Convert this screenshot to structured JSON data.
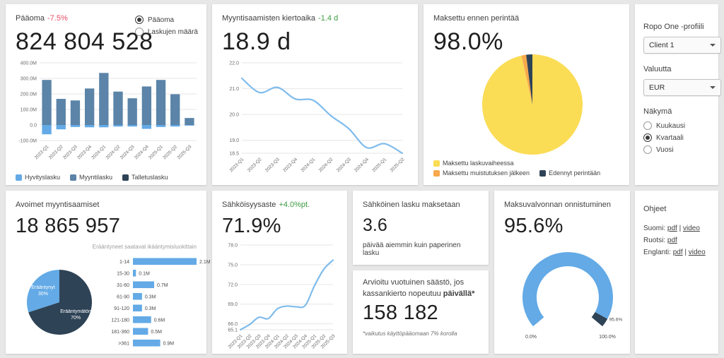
{
  "colors": {
    "accent_blue": "#63aae6",
    "line_blue": "#7fbcec",
    "steel_blue": "#5b84a8",
    "dark_navy": "#2e4356",
    "yellow": "#fbdc55",
    "orange": "#f7a94c",
    "red": "#ed4d66",
    "green": "#3c9a40"
  },
  "cards": {
    "paaoma": {
      "title": "Pääoma",
      "delta": "-7.5%",
      "value": "824 804 528",
      "radio_options": [
        {
          "label": "Pääoma",
          "selected": true
        },
        {
          "label": "Laskujen määrä",
          "selected": false
        }
      ]
    },
    "kiertoaika": {
      "title": "Myyntisaamisten kiertoaika",
      "delta": "-1.4 d",
      "value": "18.9 d"
    },
    "ennen_perintaa": {
      "title": "Maksettu ennen perintää",
      "value": "98.0%"
    },
    "avoimet": {
      "title": "Avoimet myyntisaamiset",
      "value": "18 865 957"
    },
    "sahkoisyysaste": {
      "title": "Sähköisyysaste",
      "delta": "+4.0%pt.",
      "value": "71.9%"
    },
    "sahkoinen_lasku": {
      "title": "Sähköinen lasku maksetaan",
      "value": "3.6",
      "subtitle": "päivää aiemmin kuin paperinen lasku"
    },
    "saasto": {
      "title_prefix": "Arvioitu vuotuinen säästö, jos kassankierto nopeutuu ",
      "title_bold": "päivällä*",
      "value": "158 182",
      "footnote": "*vaikutus käyttöpääomaan 7% korolla"
    },
    "maksuvalvonta": {
      "title": "Maksuvalvonnan onnistuminen",
      "value": "95.6%"
    }
  },
  "sidebar": {
    "profile_label": "Ropo One -profiili",
    "profile_value": "Client 1",
    "currency_label": "Valuutta",
    "currency_value": "EUR",
    "view_label": "Näkymä",
    "view_options": [
      {
        "label": "Kuukausi",
        "selected": false
      },
      {
        "label": "Kvartaali",
        "selected": true
      },
      {
        "label": "Vuosi",
        "selected": false
      }
    ]
  },
  "help": {
    "title": "Ohjeet",
    "rows": [
      {
        "lang": "Suomi:",
        "links": [
          "pdf",
          "video"
        ]
      },
      {
        "lang": "Ruotsi:",
        "links": [
          "pdf"
        ]
      },
      {
        "lang": "Englanti:",
        "links": [
          "pdf",
          "video"
        ]
      }
    ]
  },
  "chart_data": [
    {
      "id": "chart-paaoma",
      "type": "bar",
      "stacked": true,
      "title": "Pääoma",
      "categories": [
        "2023-Q1",
        "2023-Q2",
        "2023-Q3",
        "2023-Q4",
        "2024-Q1",
        "2024-Q2",
        "2024-Q3",
        "2024-Q4",
        "2025-Q1",
        "2025-Q2",
        "2025-Q3"
      ],
      "series": [
        {
          "name": "Hyvityslasku",
          "color": "#63aae6",
          "values": [
            -60,
            -28,
            -13,
            -15,
            -15,
            -10,
            -10,
            -25,
            -13,
            -10,
            -4
          ]
        },
        {
          "name": "Myyntilasku",
          "color": "#5b84a8",
          "values": [
            290,
            168,
            158,
            235,
            335,
            215,
            172,
            248,
            290,
            198,
            45
          ]
        },
        {
          "name": "Talletuslasku",
          "color": "#2e4356",
          "values": [
            0,
            0,
            0,
            0,
            0,
            0,
            0,
            0,
            0,
            0,
            0
          ]
        }
      ],
      "ylim": [
        -100,
        400
      ],
      "yticks": [
        {
          "v": 400,
          "label": "400.0M"
        },
        {
          "v": 300,
          "label": "300.0M"
        },
        {
          "v": 200,
          "label": "200.0M"
        },
        {
          "v": 100,
          "label": "100.0M"
        },
        {
          "v": 0,
          "label": "0.0"
        },
        {
          "v": -100,
          "label": "-100.0M"
        }
      ]
    },
    {
      "id": "chart-kiertoaika",
      "type": "line",
      "title": "Myyntisaamisten kiertoaika",
      "categories": [
        "2023-Q1",
        "2023-Q2",
        "2023-Q3",
        "2023-Q4",
        "2024-Q1",
        "2024-Q2",
        "2024-Q3",
        "2024-Q4",
        "2025-Q1",
        "2025-Q2"
      ],
      "values": [
        21.4,
        20.85,
        21.05,
        20.6,
        20.55,
        19.95,
        19.45,
        18.72,
        18.87,
        18.5
      ],
      "ylim": [
        18.5,
        22
      ],
      "yticks": [
        {
          "v": 22,
          "label": "22.0"
        },
        {
          "v": 21,
          "label": "21.0"
        },
        {
          "v": 20,
          "label": "20.0"
        },
        {
          "v": 19,
          "label": "19.0"
        },
        {
          "v": 18.5,
          "label": "18.5"
        }
      ],
      "color": "#7fbcec"
    },
    {
      "id": "chart-perinta-pie",
      "type": "pie",
      "title": "Maksettu ennen perintää",
      "slices": [
        {
          "label": "Maksettu laskuvaiheessa",
          "value": 96.5,
          "color": "#fbdc55"
        },
        {
          "label": "Maksettu muistutuksen jälkeen",
          "value": 1.5,
          "color": "#f7a94c"
        },
        {
          "label": "Edennyt perintään",
          "value": 2.0,
          "color": "#2e4356"
        }
      ]
    },
    {
      "id": "chart-avoimet-pie",
      "type": "pie",
      "title": "Avoimet myyntisaamiset",
      "inner_labels": true,
      "slices": [
        {
          "label": "Erääntymätön",
          "pct": "70%",
          "value": 70,
          "color": "#2e4356"
        },
        {
          "label": "Erääntynyt",
          "pct": "30%",
          "value": 30,
          "color": "#63aae6"
        }
      ]
    },
    {
      "id": "chart-ikaantyminen",
      "type": "bar",
      "orientation": "horizontal",
      "title": "Erääntyneet saatavat ikääntymisluokittain",
      "categories": [
        "1-14",
        "15-30",
        "31-60",
        "61-90",
        "91-120",
        "121-180",
        "181-360",
        ">361"
      ],
      "values": [
        2.1,
        0.1,
        0.7,
        0.3,
        0.3,
        0.6,
        0.5,
        0.9
      ],
      "value_labels": [
        "2.1M",
        "0.1M",
        "0.7M",
        "0.3M",
        "0.3M",
        "0.6M",
        "0.5M",
        "0.9M"
      ],
      "color": "#63aae6"
    },
    {
      "id": "chart-sahkoisyys",
      "type": "line",
      "title": "Sähköisyysaste",
      "categories": [
        "2023-Q1",
        "2023-Q2",
        "2023-Q3",
        "2023-Q4",
        "2024-Q1",
        "2024-Q2",
        "2024-Q3",
        "2024-Q4",
        "2025-Q1",
        "2025-Q2",
        "2025-Q3"
      ],
      "values": [
        65.1,
        65.9,
        67.0,
        66.8,
        68.3,
        68.7,
        68.6,
        68.8,
        71.8,
        74.3,
        75.7
      ],
      "ylim": [
        65.1,
        78
      ],
      "yticks": [
        {
          "v": 78,
          "label": "78.0"
        },
        {
          "v": 75,
          "label": "75.0"
        },
        {
          "v": 72,
          "label": "72.0"
        },
        {
          "v": 69,
          "label": "69.0"
        },
        {
          "v": 66,
          "label": "66.0"
        },
        {
          "v": 65.1,
          "label": "65.1"
        }
      ],
      "color": "#7fbcec"
    },
    {
      "id": "chart-gauge",
      "type": "gauge",
      "title": "Maksuvalvonnan onnistuminen",
      "value": 95.6,
      "min": 0,
      "max": 100,
      "start_label": "0.0%",
      "value_label": "95.6%",
      "end_label": "100.0%",
      "color": "#63aae6",
      "rest_color": "#2e4356"
    }
  ]
}
